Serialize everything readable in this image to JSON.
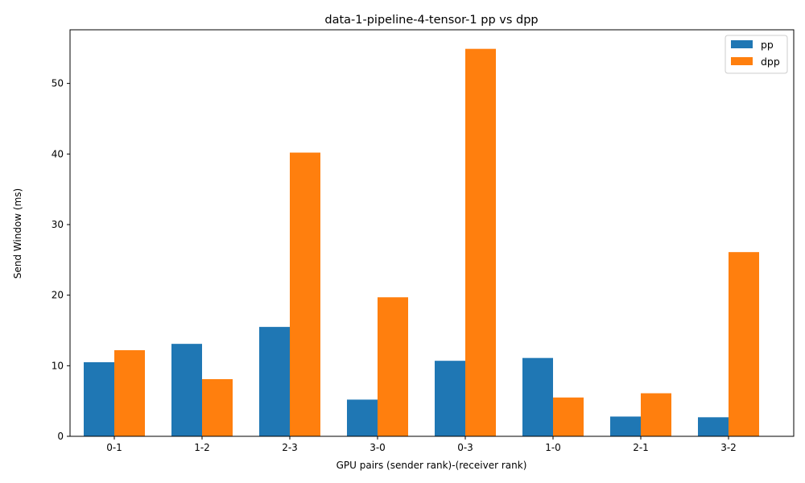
{
  "chart_data": {
    "type": "bar",
    "title": "data-1-pipeline-4-tensor-1 pp vs dpp",
    "xlabel": "GPU pairs (sender rank)-(receiver rank)",
    "ylabel": "Send Window (ms)",
    "categories": [
      "0-1",
      "1-2",
      "2-3",
      "3-0",
      "0-3",
      "1-0",
      "2-1",
      "3-2"
    ],
    "series": [
      {
        "name": "pp",
        "color": "#1f77b4",
        "values": [
          10.5,
          13.1,
          15.5,
          5.2,
          10.7,
          11.1,
          2.8,
          2.7
        ]
      },
      {
        "name": "dpp",
        "color": "#ff7f0e",
        "values": [
          12.2,
          8.1,
          40.2,
          19.7,
          54.9,
          5.5,
          6.1,
          26.1
        ]
      }
    ],
    "ylim": [
      0,
      57.6
    ],
    "yticks": [
      0,
      10,
      20,
      30,
      40,
      50
    ],
    "grid": false,
    "legend_position": "top-right"
  }
}
